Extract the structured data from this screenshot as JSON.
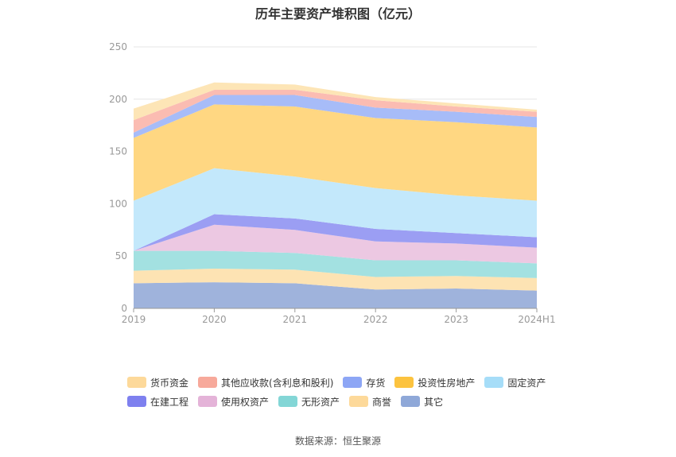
{
  "title": "历年主要资产堆积图（亿元）",
  "source": "数据来源：恒生聚源",
  "chart_data": {
    "type": "area",
    "stacked": true,
    "title": "历年主要资产堆积图（亿元）",
    "x": [
      "2019",
      "2020",
      "2021",
      "2022",
      "2023",
      "2024H1"
    ],
    "ylim": [
      0,
      250
    ],
    "yticks": [
      0,
      50,
      100,
      150,
      200,
      250
    ],
    "grid": true,
    "legend_position": "bottom",
    "series": [
      {
        "name": "其它",
        "color": "#9fb3dc",
        "values": [
          24,
          25,
          24,
          18,
          19,
          17
        ]
      },
      {
        "name": "商誉",
        "color": "#fde3b3",
        "values": [
          12,
          13,
          13,
          12,
          12,
          12
        ]
      },
      {
        "name": "无形资产",
        "color": "#a3e1e1",
        "values": [
          19,
          17,
          16,
          16,
          15,
          14
        ]
      },
      {
        "name": "使用权资产",
        "color": "#ecc8e2",
        "values": [
          0,
          25,
          22,
          18,
          16,
          15
        ]
      },
      {
        "name": "在建工程",
        "color": "#9b9ef3",
        "values": [
          0,
          10,
          11,
          12,
          10,
          10
        ]
      },
      {
        "name": "固定资产",
        "color": "#c3e8fb",
        "values": [
          48,
          44,
          40,
          39,
          36,
          35
        ]
      },
      {
        "name": "投资性房地产",
        "color": "#ffd782",
        "values": [
          60,
          61,
          67,
          67,
          70,
          70
        ]
      },
      {
        "name": "存货",
        "color": "#a7bcf8",
        "values": [
          5,
          9,
          11,
          10,
          10,
          10
        ]
      },
      {
        "name": "其他应收款(含利息和股利)",
        "color": "#fbbcb2",
        "values": [
          12,
          5,
          5,
          7,
          5,
          5
        ]
      },
      {
        "name": "货币资金",
        "color": "#fde5b6",
        "values": [
          11,
          7,
          5,
          3,
          3,
          2
        ]
      }
    ],
    "legend": [
      {
        "name": "货币资金",
        "color": "#fdd99a"
      },
      {
        "name": "其他应收款(含利息和股利)",
        "color": "#f7a99b"
      },
      {
        "name": "存货",
        "color": "#8da6f5"
      },
      {
        "name": "投资性房地产",
        "color": "#fcc33f"
      },
      {
        "name": "固定资产",
        "color": "#a6ddf8"
      },
      {
        "name": "在建工程",
        "color": "#7e80ef"
      },
      {
        "name": "使用权资产",
        "color": "#e4b3d8"
      },
      {
        "name": "无形资产",
        "color": "#83d6d6"
      },
      {
        "name": "商誉",
        "color": "#fdd99a"
      },
      {
        "name": "其它",
        "color": "#8fa8d8"
      }
    ]
  }
}
